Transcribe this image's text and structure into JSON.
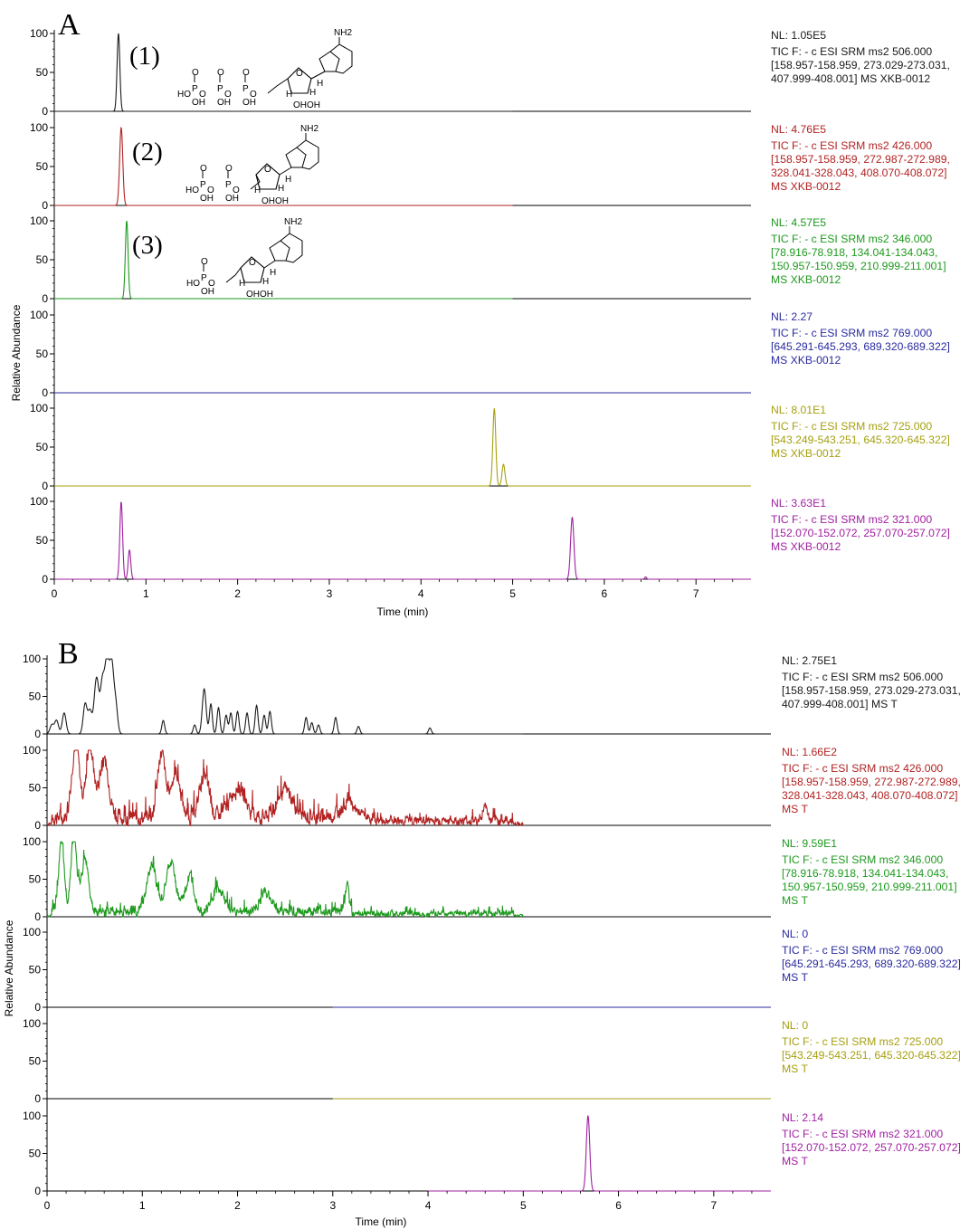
{
  "colors": [
    "#1a1a1a",
    "#b22222",
    "#1e9a1e",
    "#2a2aa0",
    "#a6a010",
    "#a020a0"
  ],
  "labels": {
    "ylabel": "Relative Abundance",
    "xlabel": "Time (min)",
    "tick_100": "100",
    "tick_50": "50",
    "tick_0": "0"
  },
  "structures": [
    {
      "label": "(1)",
      "nh2": "NH2",
      "groups": [
        "HO",
        "P",
        "O",
        "P",
        "O",
        "P",
        "O",
        "OH",
        "OH",
        "OH",
        "O",
        "O",
        "O",
        "H",
        "H",
        "H",
        "OHOH"
      ]
    },
    {
      "label": "(2)",
      "nh2": "NH2",
      "groups": [
        "HO",
        "P",
        "O",
        "P",
        "O",
        "OH",
        "OH",
        "O",
        "O",
        "H",
        "H",
        "H",
        "OHOH"
      ]
    },
    {
      "label": "(3)",
      "nh2": "NH2",
      "groups": [
        "HO",
        "P",
        "O",
        "OH",
        "O",
        "H",
        "H",
        "H",
        "OHOH"
      ]
    }
  ],
  "chart_data": [
    {
      "panel": "A",
      "type": "line",
      "xlabel": "Time (min)",
      "ylabel": "Relative Abundance",
      "xlim": [
        0,
        7.6
      ],
      "ylim": [
        0,
        100
      ],
      "x_ticks": [
        0,
        1,
        2,
        3,
        4,
        5,
        6,
        7
      ],
      "y_ticks": [
        0,
        50,
        100
      ],
      "traces": [
        {
          "nl": "NL: 1.05E5",
          "desc": [
            "TIC F: - c ESI SRM ms2 506.000",
            "[158.957-158.959, 273.029-273.031,",
            "407.999-408.001]  MS XKB-0012"
          ],
          "structure": "(1)",
          "x_range": [
            0,
            5
          ],
          "peaks": [
            [
              0.7,
              100,
              0.015
            ]
          ],
          "noise": 0
        },
        {
          "nl": "NL: 4.76E5",
          "desc": [
            "TIC F: - c ESI SRM ms2 426.000",
            "[158.957-158.959, 272.987-272.989,",
            "328.041-328.043, 408.070-408.072]",
            "MS XKB-0012"
          ],
          "structure": "(2)",
          "x_range": [
            0,
            5
          ],
          "peaks": [
            [
              0.73,
              100,
              0.017
            ]
          ],
          "noise": 0
        },
        {
          "nl": "NL: 4.57E5",
          "desc": [
            "TIC F: - c ESI SRM ms2 346.000",
            "[78.916-78.918, 134.041-134.043,",
            "150.957-150.959, 210.999-211.001]",
            "MS XKB-0012"
          ],
          "structure": "(3)",
          "x_range": [
            0,
            5
          ],
          "peaks": [
            [
              0.79,
              100,
              0.015
            ]
          ],
          "noise": 0
        },
        {
          "nl": "NL: 2.27",
          "desc": [
            "TIC F: - c ESI SRM ms2 769.000",
            "[645.291-645.293, 689.320-689.322]",
            "MS XKB-0012"
          ],
          "x_range": [
            0,
            7.6
          ],
          "peaks": [],
          "noise": 0
        },
        {
          "nl": "NL: 8.01E1",
          "desc": [
            "TIC F: - c ESI SRM ms2 725.000",
            "[543.249-543.251, 645.320-645.322]",
            "MS XKB-0012"
          ],
          "x_range": [
            0,
            7.6
          ],
          "peaks": [
            [
              4.8,
              100,
              0.016
            ],
            [
              4.9,
              28,
              0.016
            ]
          ],
          "noise": 0
        },
        {
          "nl": "NL: 3.63E1",
          "desc": [
            "TIC F: - c ESI SRM ms2 321.000",
            "[152.070-152.072, 257.070-257.072]",
            "MS XKB-0012"
          ],
          "x_range": [
            0,
            7.6
          ],
          "peaks": [
            [
              0.73,
              100,
              0.015
            ],
            [
              0.82,
              38,
              0.014
            ],
            [
              5.65,
              80,
              0.018
            ],
            [
              6.45,
              3,
              0.01
            ]
          ],
          "noise": 0
        }
      ]
    },
    {
      "panel": "B",
      "type": "line",
      "xlabel": "Time (min)",
      "ylabel": "Relative Abundance",
      "xlim": [
        0,
        7.6
      ],
      "ylim": [
        0,
        100
      ],
      "x_ticks": [
        0,
        1,
        2,
        3,
        4,
        5,
        6,
        7
      ],
      "y_ticks": [
        0,
        50,
        100
      ],
      "traces": [
        {
          "nl": "NL: 2.75E1",
          "desc": [
            "TIC F: - c ESI SRM ms2 506.000",
            "[158.957-158.959, 273.029-273.031,",
            "407.999-408.001]  MS T"
          ],
          "x_range": [
            0,
            5
          ],
          "peaks": [
            [
              0.05,
              12,
              0.02
            ],
            [
              0.1,
              18,
              0.02
            ],
            [
              0.18,
              28,
              0.02
            ],
            [
              0.4,
              40,
              0.02
            ],
            [
              0.45,
              30,
              0.02
            ],
            [
              0.52,
              75,
              0.025
            ],
            [
              0.58,
              60,
              0.02
            ],
            [
              0.63,
              100,
              0.025
            ],
            [
              0.68,
              82,
              0.02
            ],
            [
              0.72,
              40,
              0.02
            ],
            [
              1.22,
              18,
              0.015
            ],
            [
              1.55,
              12,
              0.015
            ],
            [
              1.65,
              60,
              0.02
            ],
            [
              1.72,
              40,
              0.015
            ],
            [
              1.8,
              35,
              0.015
            ],
            [
              1.88,
              25,
              0.015
            ],
            [
              1.93,
              28,
              0.015
            ],
            [
              2.0,
              30,
              0.015
            ],
            [
              2.1,
              28,
              0.015
            ],
            [
              2.2,
              38,
              0.015
            ],
            [
              2.28,
              25,
              0.015
            ],
            [
              2.34,
              30,
              0.015
            ],
            [
              2.72,
              22,
              0.015
            ],
            [
              2.78,
              15,
              0.015
            ],
            [
              2.85,
              12,
              0.015
            ],
            [
              3.03,
              22,
              0.015
            ],
            [
              3.27,
              10,
              0.015
            ],
            [
              4.02,
              8,
              0.015
            ]
          ],
          "noise": 0
        },
        {
          "nl": "NL: 1.66E2",
          "desc": [
            "TIC F: - c ESI SRM ms2 426.000",
            "[158.957-158.959, 272.987-272.989,",
            "328.041-328.043, 408.070-408.072]",
            "MS T"
          ],
          "x_range": [
            0,
            5
          ],
          "peaks": [
            [
              0.3,
              98,
              0.04
            ],
            [
              0.45,
              95,
              0.04
            ],
            [
              0.6,
              75,
              0.05
            ],
            [
              1.2,
              85,
              0.04
            ],
            [
              1.35,
              60,
              0.05
            ],
            [
              1.65,
              55,
              0.05
            ],
            [
              2.0,
              40,
              0.08
            ],
            [
              2.5,
              35,
              0.08
            ],
            [
              3.2,
              25,
              0.1
            ],
            [
              4.6,
              38,
              0.02
            ]
          ],
          "noise": 18
        },
        {
          "nl": "NL: 9.59E1",
          "desc": [
            "TIC F: - c ESI SRM ms2 346.000",
            "[78.916-78.918, 134.041-134.043,",
            "150.957-150.959, 210.999-211.001]",
            "MS T"
          ],
          "x_range": [
            0,
            5
          ],
          "peaks": [
            [
              0.15,
              90,
              0.03
            ],
            [
              0.28,
              100,
              0.03
            ],
            [
              0.4,
              70,
              0.04
            ],
            [
              1.1,
              60,
              0.05
            ],
            [
              1.3,
              65,
              0.05
            ],
            [
              1.5,
              45,
              0.05
            ],
            [
              1.8,
              30,
              0.06
            ],
            [
              2.3,
              25,
              0.06
            ],
            [
              3.15,
              32,
              0.02
            ]
          ],
          "noise": 12
        },
        {
          "nl": "NL: 0",
          "desc": [
            "TIC F: - c ESI SRM ms2 769.000",
            "[645.291-645.293, 689.320-689.322]",
            "MS T"
          ],
          "x_range": [
            3,
            7.6
          ],
          "peaks": [],
          "noise": 0
        },
        {
          "nl": "NL: 0",
          "desc": [
            "TIC F: - c ESI SRM ms2 725.000",
            "[543.249-543.251, 645.320-645.322]",
            "MS T"
          ],
          "x_range": [
            3,
            7.6
          ],
          "peaks": [],
          "noise": 0
        },
        {
          "nl": "NL: 2.14",
          "desc": [
            "TIC F: - c ESI SRM ms2 321.000",
            "[152.070-152.072, 257.070-257.072]",
            "MS T"
          ],
          "x_range": [
            4,
            7.6
          ],
          "peaks": [
            [
              5.68,
              100,
              0.018
            ]
          ],
          "noise": 0
        }
      ]
    }
  ]
}
